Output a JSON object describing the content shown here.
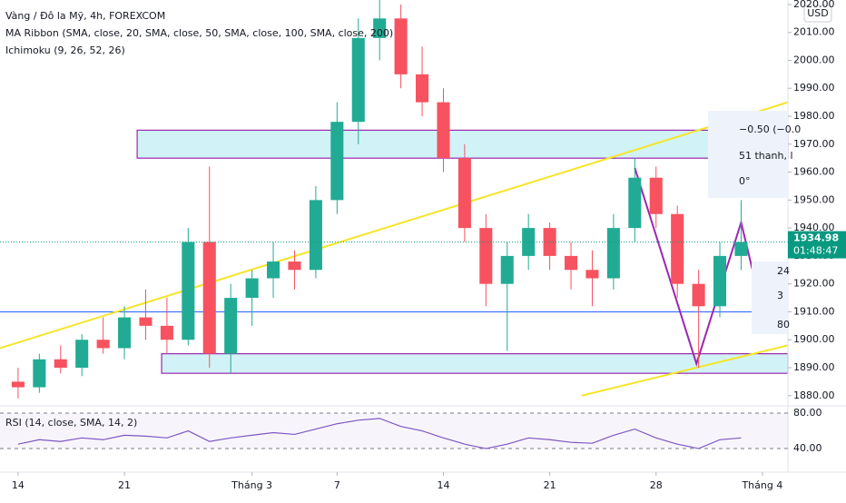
{
  "chart_data": {
    "type": "candlestick",
    "symbol": "Vàng / Đô la Mỹ, 4h, FOREXCOM",
    "indicators": [
      "MA Ribbon (SMA, close, 20, SMA, close, 50, SMA, close, 100, SMA, close, 200)",
      "Ichimoku (9, 26, 52, 26)"
    ],
    "currency": "USD",
    "x": [
      0,
      1,
      2,
      3,
      4,
      5,
      6,
      7,
      8,
      9,
      10,
      11,
      12,
      13,
      14,
      15,
      16,
      17,
      18,
      19,
      20,
      21,
      22,
      23,
      24,
      25,
      26,
      27,
      28,
      29,
      30,
      31,
      32,
      33,
      34
    ],
    "open": [
      1885,
      1883,
      1893,
      1890,
      1900,
      1897,
      1908,
      1905,
      1900,
      1935,
      1895,
      1915,
      1922,
      1928,
      1925,
      1950,
      1978,
      2008,
      2015,
      1995,
      1985,
      1965,
      1940,
      1920,
      1930,
      1940,
      1930,
      1925,
      1922,
      1940,
      1958,
      1945,
      1920,
      1912,
      1930
    ],
    "high": [
      1890,
      1895,
      1898,
      1902,
      1908,
      1912,
      1918,
      1915,
      1940,
      1962,
      1920,
      1925,
      1935,
      1932,
      1955,
      1985,
      2015,
      2024,
      2020,
      2005,
      1990,
      1970,
      1945,
      1935,
      1945,
      1942,
      1935,
      1932,
      1945,
      1965,
      1962,
      1948,
      1925,
      1935,
      1950
    ],
    "low": [
      1879,
      1881,
      1888,
      1887,
      1895,
      1893,
      1900,
      1895,
      1898,
      1890,
      1888,
      1905,
      1915,
      1918,
      1922,
      1945,
      1970,
      2000,
      1990,
      1980,
      1960,
      1935,
      1912,
      1896,
      1925,
      1925,
      1918,
      1912,
      1918,
      1935,
      1940,
      1915,
      1890,
      1908,
      1925
    ],
    "close": [
      1883,
      1893,
      1890,
      1900,
      1897,
      1908,
      1905,
      1900,
      1935,
      1895,
      1915,
      1922,
      1928,
      1925,
      1950,
      1978,
      2008,
      2015,
      1995,
      1985,
      1965,
      1940,
      1920,
      1930,
      1940,
      1930,
      1925,
      1922,
      1940,
      1958,
      1945,
      1920,
      1912,
      1930,
      1935
    ],
    "up_color": "#22ab94",
    "down_color": "#f7525f",
    "xlim": [
      -0.85,
      36.2
    ],
    "xticks": [
      {
        "value": 0,
        "label": "14"
      },
      {
        "value": 5,
        "label": "21"
      },
      {
        "value": 11,
        "label": "Tháng 3"
      },
      {
        "value": 15,
        "label": "7"
      },
      {
        "value": 20,
        "label": "14"
      },
      {
        "value": 25,
        "label": "21"
      },
      {
        "value": 30,
        "label": "28"
      },
      {
        "value": 35,
        "label": "Tháng 4"
      }
    ],
    "ylim": [
      1877,
      2021.6
    ],
    "yticks": [
      {
        "value": 1880,
        "label": "1880.00"
      },
      {
        "value": 1890,
        "label": "1890.00"
      },
      {
        "value": 1900,
        "label": "1900.00"
      },
      {
        "value": 1910,
        "label": "1910.00"
      },
      {
        "value": 1920,
        "label": "1920.00"
      },
      {
        "value": 1930,
        "label": "1930.00"
      },
      {
        "value": 1940,
        "label": "1940.00"
      },
      {
        "value": 1950,
        "label": "1950.00"
      },
      {
        "value": 1960,
        "label": "1960.00"
      },
      {
        "value": 1970,
        "label": "1970.00"
      },
      {
        "value": 1980,
        "label": "1980.00"
      },
      {
        "value": 1990,
        "label": "1990.00"
      },
      {
        "value": 2000,
        "label": "2000.00"
      },
      {
        "value": 2010,
        "label": "2010.00"
      },
      {
        "value": 2020,
        "label": "2020.00"
      }
    ],
    "last_price": 1934.98,
    "countdown": "01:48:47",
    "last_price_color": "#089981",
    "zones": [
      {
        "x": [
          5.6,
          36.2
        ],
        "y": [
          1965,
          1975
        ]
      },
      {
        "x": [
          6.75,
          36.2
        ],
        "y": [
          1888,
          1895
        ]
      }
    ],
    "zone_color": "#9c27b0",
    "zone_fill": "#b2ebf2",
    "levels": [
      {
        "value": 1910,
        "color": "#2962ff"
      }
    ],
    "trend_lines": [
      {
        "x": [
          -0.85,
          36.2
        ],
        "y": [
          1897,
          1985
        ],
        "color": "#f5e52a"
      },
      {
        "x": [
          26.5,
          36.2
        ],
        "y": [
          1880,
          1898
        ],
        "color": "#f5e52a"
      },
      {
        "x": [
          29.0,
          31.9,
          34.0,
          35.1
        ],
        "y": [
          1961.5,
          1891.4,
          1942,
          1907
        ],
        "color": "#9c27b0"
      }
    ],
    "measure": [
      "−0.50 (−0.0",
      "51 thanh, l",
      "0°"
    ],
    "measure2": [
      "24",
      "3",
      "80"
    ],
    "rsi": {
      "title": "RSI (14, close, SMA, 14, 2)",
      "color": "#7e57c2",
      "values": [
        45,
        50,
        48,
        52,
        50,
        55,
        54,
        52,
        60,
        48,
        52,
        55,
        58,
        56,
        62,
        68,
        72,
        74,
        65,
        60,
        52,
        45,
        40,
        45,
        52,
        50,
        47,
        46,
        55,
        62,
        52,
        45,
        40,
        50,
        52
      ],
      "ylim": [
        18.5,
        87.2
      ],
      "yticks": [
        {
          "value": 80,
          "label": "80.00"
        },
        {
          "value": 40,
          "label": "40.00"
        }
      ]
    }
  }
}
